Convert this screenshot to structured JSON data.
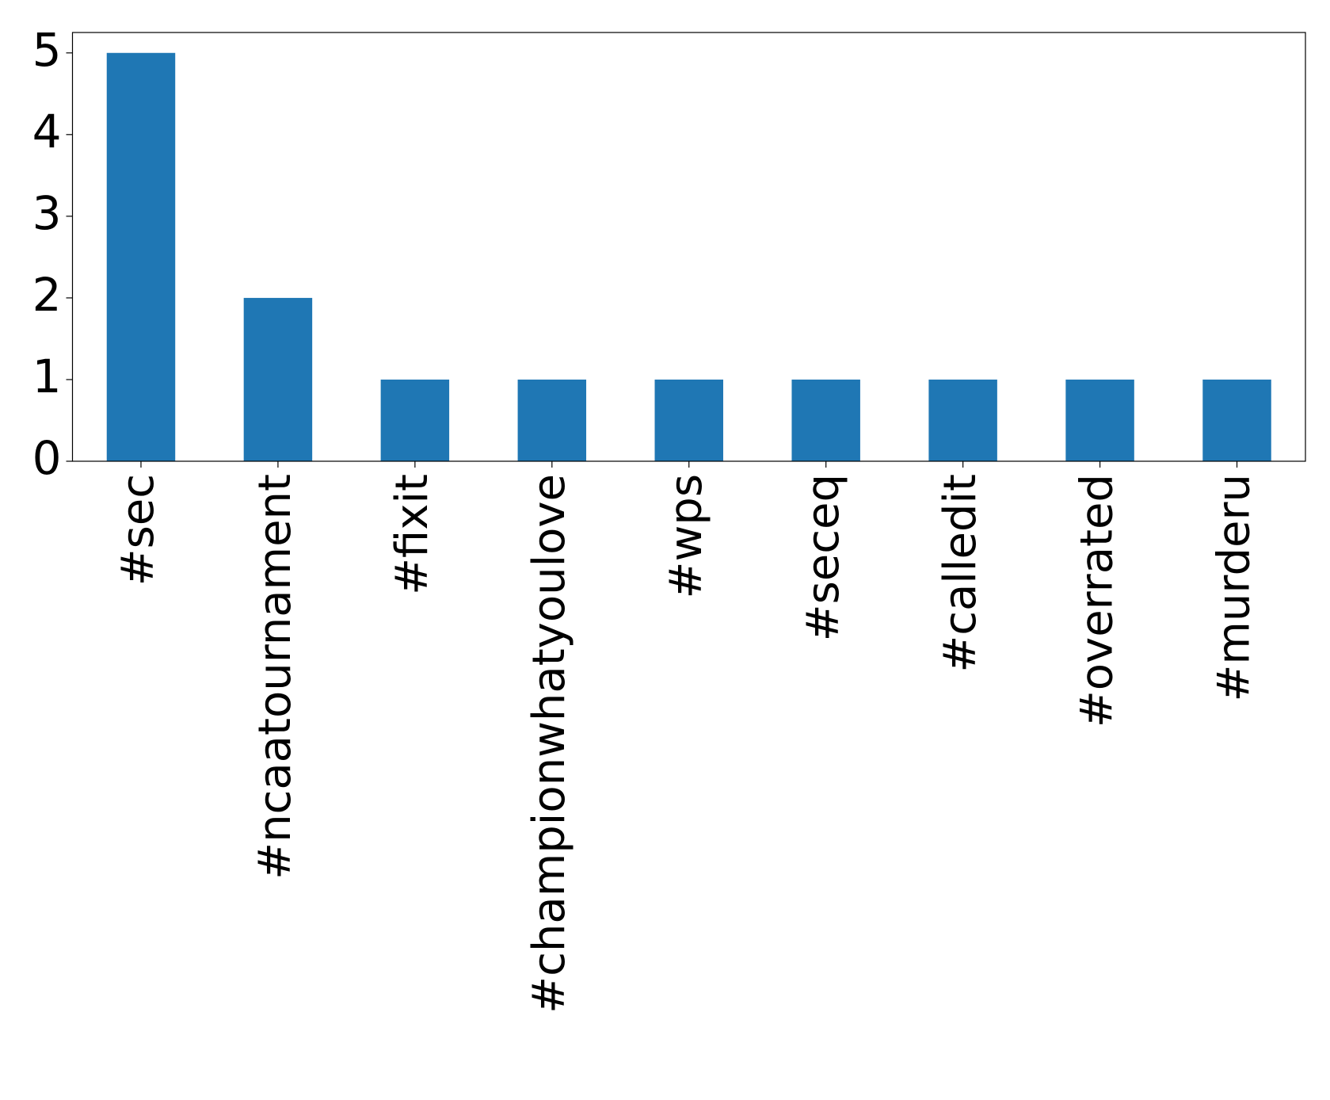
{
  "chart_data": {
    "type": "bar",
    "categories": [
      "#sec",
      "#ncaatournament",
      "#fixit",
      "#championwhatyoulove",
      "#wps",
      "#seceq",
      "#calledit",
      "#overrated",
      "#murderu"
    ],
    "values": [
      5,
      2,
      1,
      1,
      1,
      1,
      1,
      1,
      1
    ],
    "color": "#1f77b4",
    "ylim": [
      0,
      5.25
    ],
    "yticks": [
      0,
      1,
      2,
      3,
      4,
      5
    ]
  }
}
